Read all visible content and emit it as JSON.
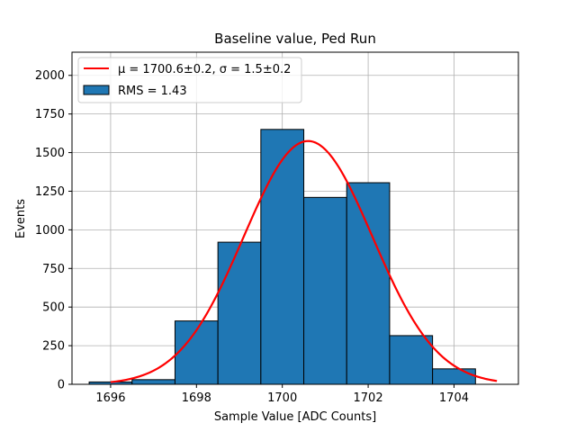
{
  "chart_data": {
    "type": "bar",
    "title": "Baseline value, Ped Run",
    "xlabel": "Sample Value [ADC Counts]",
    "ylabel": "Events",
    "xlim": [
      1695.1,
      1705.5
    ],
    "ylim": [
      0,
      2150
    ],
    "xticks": [
      1696,
      1698,
      1700,
      1702,
      1704
    ],
    "yticks": [
      0,
      250,
      500,
      750,
      1000,
      1250,
      1500,
      1750,
      2000
    ],
    "grid": true,
    "legend_position": "top-left",
    "series": [
      {
        "kind": "histogram",
        "name": "RMS = 1.43",
        "color": "#1f77b4",
        "edge_color": "#000000",
        "bin_edges": [
          1695.5,
          1696.5,
          1697.5,
          1698.5,
          1699.5,
          1700.5,
          1701.5,
          1702.5,
          1703.5,
          1704.5
        ],
        "counts": [
          15,
          30,
          410,
          920,
          1650,
          1210,
          1305,
          315,
          100
        ]
      },
      {
        "kind": "gaussian_fit",
        "name": "μ = 1700.6±0.2, σ = 1.5±0.2",
        "color": "#ff0000",
        "mu": 1700.6,
        "sigma": 1.5,
        "amplitude": 1575,
        "x_range": [
          1696,
          1705
        ]
      }
    ]
  }
}
